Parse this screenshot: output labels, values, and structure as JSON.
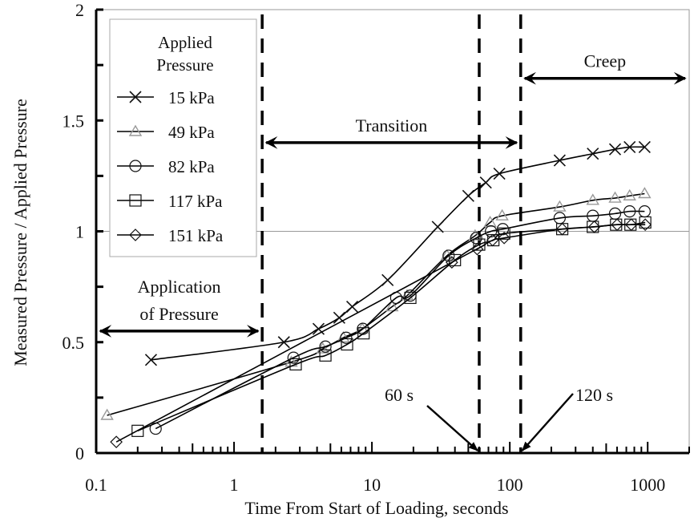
{
  "chart_data": {
    "type": "scatter",
    "title": "",
    "xlabel": "Time From Start of Loading, seconds",
    "ylabel": "Measured Pressure / Applied Pressure",
    "xscale": "log",
    "xlim": [
      0.1,
      2000
    ],
    "ylim": [
      0,
      2
    ],
    "xticks": [
      0.1,
      1,
      10,
      100,
      1000
    ],
    "xtick_labels": [
      "0.1",
      "1",
      "10",
      "100",
      "1000"
    ],
    "yticks": [
      0,
      0.5,
      1,
      1.5,
      2
    ],
    "ytick_labels": [
      "0",
      "0.5",
      "1",
      "1.5",
      "2"
    ],
    "reference_line": {
      "y": 1,
      "color": "#999999"
    },
    "legend": {
      "title_lines": [
        "Applied",
        "Pressure"
      ],
      "placement": "top-left",
      "entries": [
        "15 kPa",
        "49 kPa",
        "82 kPa",
        "117 kPa",
        "151 kPa"
      ]
    },
    "series": [
      {
        "name": "15 kPa",
        "marker": "x",
        "color": "#111111",
        "x": [
          0.25,
          2.3,
          4.1,
          5.8,
          7.2,
          13,
          30,
          50,
          67,
          84,
          230,
          400,
          580,
          740,
          950
        ],
        "y": [
          0.42,
          0.5,
          0.56,
          0.61,
          0.66,
          0.78,
          1.02,
          1.16,
          1.22,
          1.26,
          1.32,
          1.35,
          1.37,
          1.38,
          1.38
        ]
      },
      {
        "name": "49 kPa",
        "marker": "triangle",
        "color": "#999999",
        "x": [
          0.12,
          2.6,
          4.4,
          6.2,
          8.5,
          14,
          18,
          35,
          56,
          72,
          88,
          230,
          400,
          580,
          740,
          950
        ],
        "y": [
          0.17,
          0.41,
          0.47,
          0.52,
          0.56,
          0.66,
          0.71,
          0.89,
          0.98,
          1.04,
          1.07,
          1.11,
          1.14,
          1.15,
          1.16,
          1.17
        ]
      },
      {
        "name": "82 kPa",
        "marker": "circle",
        "color": "#111111",
        "x": [
          0.27,
          2.7,
          4.6,
          6.5,
          8.6,
          15,
          19,
          36,
          57,
          73,
          89,
          230,
          400,
          580,
          740,
          950
        ],
        "y": [
          0.11,
          0.43,
          0.48,
          0.52,
          0.56,
          0.7,
          0.71,
          0.89,
          0.97,
          1.0,
          1.01,
          1.06,
          1.07,
          1.08,
          1.09,
          1.09
        ]
      },
      {
        "name": "117 kPa",
        "marker": "square",
        "color": "#111111",
        "x": [
          0.2,
          2.8,
          4.6,
          6.6,
          8.7,
          19,
          40,
          60,
          76,
          91,
          240,
          400,
          590,
          750,
          960
        ],
        "y": [
          0.1,
          0.4,
          0.44,
          0.49,
          0.54,
          0.7,
          0.87,
          0.94,
          0.96,
          0.99,
          1.01,
          1.02,
          1.03,
          1.03,
          1.04
        ]
      },
      {
        "name": "151 kPa",
        "marker": "diamond",
        "color": "#111111",
        "x": [
          0.14,
          38,
          58,
          75,
          91,
          240,
          410,
          600,
          760,
          960
        ],
        "y": [
          0.05,
          0.86,
          0.92,
          0.96,
          0.97,
          1.01,
          1.02,
          1.03,
          1.03,
          1.03
        ]
      }
    ],
    "vertical_markers": [
      {
        "x": 1.6,
        "style": "dashed"
      },
      {
        "x": 60,
        "style": "dashed"
      },
      {
        "x": 120,
        "style": "dashed"
      }
    ],
    "regions": [
      {
        "label_lines": [
          "Application",
          "of Pressure"
        ],
        "x_from": 0.1,
        "x_to": 1.6,
        "y": 0.55
      },
      {
        "label_lines": [
          "Transition"
        ],
        "x_from": 1.6,
        "x_to": 120,
        "y": 1.4
      },
      {
        "label_lines": [
          "Creep"
        ],
        "x_from": 120,
        "x_to": 2000,
        "y": 1.69
      }
    ],
    "annotations": [
      {
        "text": "60 s",
        "points_to_x": 60
      },
      {
        "text": "120 s",
        "points_to_x": 120
      }
    ]
  }
}
